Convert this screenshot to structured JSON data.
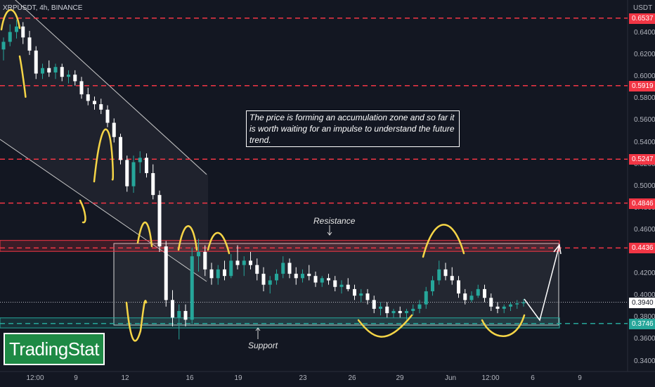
{
  "header": {
    "symbol": "XRPUSDT, 4h, BINANCE",
    "unit": "USDT"
  },
  "annotation": {
    "note": "The price is forming an accumulation zone and so far it is worth waiting for an impulse to understand the future trend.",
    "resistance_label": "Resistance",
    "support_label": "Support"
  },
  "logo": {
    "text": "TradingStat",
    "color": "#1e8a45"
  },
  "colors": {
    "background": "#131722",
    "up": "#26a69a",
    "down": "#ffffff",
    "level_line": "#f23645",
    "support_line": "#26a69a",
    "wave": "#f5d547"
  },
  "chart_data": {
    "type": "candlestick",
    "title": "XRPUSDT, 4h, BINANCE",
    "y_axis": {
      "unit": "USDT",
      "ticks": [
        "0.6400",
        "0.6200",
        "0.6000",
        "0.5800",
        "0.5600",
        "0.5400",
        "0.5200",
        "0.5000",
        "0.4800",
        "0.4600",
        "0.4400",
        "0.4200",
        "0.4000",
        "0.3800",
        "0.3600",
        "0.3400"
      ],
      "range": [
        0.33,
        0.662
      ]
    },
    "x_axis": {
      "ticks": [
        "12:00",
        "9",
        "12",
        "16",
        "19",
        "23",
        "26",
        "29",
        "Jun",
        "12:00",
        "6",
        "9"
      ]
    },
    "levels": [
      {
        "label": "0.6537",
        "value": 0.6537,
        "style": "dashed",
        "color": "#f23645"
      },
      {
        "label": "0.5919",
        "value": 0.5919,
        "style": "dashed",
        "color": "#f23645"
      },
      {
        "label": "0.5247",
        "value": 0.5247,
        "style": "dashed",
        "color": "#f23645"
      },
      {
        "label": "0.4846",
        "value": 0.4846,
        "style": "dashed",
        "color": "#f23645"
      },
      {
        "label": "0.4436",
        "value": 0.4436,
        "style": "dashed",
        "color": "#f23645"
      },
      {
        "label": "0.3746",
        "value": 0.3746,
        "style": "dashed",
        "color": "#26a69a"
      }
    ],
    "last_price": {
      "label": "0.3940",
      "value": 0.394
    },
    "zones": [
      {
        "name": "Resistance",
        "from": 0.4405,
        "to": 0.4505
      },
      {
        "name": "Support",
        "from": 0.3705,
        "to": 0.3797
      }
    ],
    "candles": [
      {
        "o": 0.625,
        "h": 0.636,
        "l": 0.615,
        "c": 0.632
      },
      {
        "o": 0.632,
        "h": 0.648,
        "l": 0.628,
        "c": 0.641
      },
      {
        "o": 0.641,
        "h": 0.652,
        "l": 0.635,
        "c": 0.646
      },
      {
        "o": 0.646,
        "h": 0.65,
        "l": 0.63,
        "c": 0.636
      },
      {
        "o": 0.636,
        "h": 0.642,
        "l": 0.62,
        "c": 0.624
      },
      {
        "o": 0.624,
        "h": 0.628,
        "l": 0.598,
        "c": 0.603
      },
      {
        "o": 0.603,
        "h": 0.612,
        "l": 0.598,
        "c": 0.608
      },
      {
        "o": 0.608,
        "h": 0.615,
        "l": 0.6,
        "c": 0.604
      },
      {
        "o": 0.604,
        "h": 0.612,
        "l": 0.598,
        "c": 0.609
      },
      {
        "o": 0.609,
        "h": 0.612,
        "l": 0.596,
        "c": 0.6
      },
      {
        "o": 0.6,
        "h": 0.606,
        "l": 0.594,
        "c": 0.602
      },
      {
        "o": 0.602,
        "h": 0.606,
        "l": 0.592,
        "c": 0.596
      },
      {
        "o": 0.596,
        "h": 0.6,
        "l": 0.58,
        "c": 0.584
      },
      {
        "o": 0.584,
        "h": 0.59,
        "l": 0.574,
        "c": 0.578
      },
      {
        "o": 0.578,
        "h": 0.582,
        "l": 0.57,
        "c": 0.575
      },
      {
        "o": 0.575,
        "h": 0.58,
        "l": 0.566,
        "c": 0.57
      },
      {
        "o": 0.57,
        "h": 0.574,
        "l": 0.554,
        "c": 0.558
      },
      {
        "o": 0.558,
        "h": 0.562,
        "l": 0.54,
        "c": 0.545
      },
      {
        "o": 0.545,
        "h": 0.548,
        "l": 0.52,
        "c": 0.524
      },
      {
        "o": 0.524,
        "h": 0.528,
        "l": 0.495,
        "c": 0.5
      },
      {
        "o": 0.5,
        "h": 0.528,
        "l": 0.494,
        "c": 0.522
      },
      {
        "o": 0.522,
        "h": 0.532,
        "l": 0.512,
        "c": 0.526
      },
      {
        "o": 0.526,
        "h": 0.53,
        "l": 0.508,
        "c": 0.512
      },
      {
        "o": 0.512,
        "h": 0.52,
        "l": 0.488,
        "c": 0.492
      },
      {
        "o": 0.492,
        "h": 0.496,
        "l": 0.44,
        "c": 0.445
      },
      {
        "o": 0.445,
        "h": 0.45,
        "l": 0.39,
        "c": 0.396
      },
      {
        "o": 0.396,
        "h": 0.405,
        "l": 0.372,
        "c": 0.38
      },
      {
        "o": 0.38,
        "h": 0.392,
        "l": 0.36,
        "c": 0.386
      },
      {
        "o": 0.386,
        "h": 0.392,
        "l": 0.372,
        "c": 0.378
      },
      {
        "o": 0.378,
        "h": 0.444,
        "l": 0.374,
        "c": 0.436
      },
      {
        "o": 0.436,
        "h": 0.452,
        "l": 0.422,
        "c": 0.44
      },
      {
        "o": 0.44,
        "h": 0.446,
        "l": 0.418,
        "c": 0.424
      },
      {
        "o": 0.424,
        "h": 0.43,
        "l": 0.41,
        "c": 0.416
      },
      {
        "o": 0.416,
        "h": 0.428,
        "l": 0.41,
        "c": 0.424
      },
      {
        "o": 0.424,
        "h": 0.432,
        "l": 0.414,
        "c": 0.418
      },
      {
        "o": 0.418,
        "h": 0.438,
        "l": 0.416,
        "c": 0.432
      },
      {
        "o": 0.432,
        "h": 0.446,
        "l": 0.424,
        "c": 0.428
      },
      {
        "o": 0.428,
        "h": 0.436,
        "l": 0.418,
        "c": 0.432
      },
      {
        "o": 0.432,
        "h": 0.44,
        "l": 0.424,
        "c": 0.428
      },
      {
        "o": 0.428,
        "h": 0.434,
        "l": 0.414,
        "c": 0.42
      },
      {
        "o": 0.42,
        "h": 0.426,
        "l": 0.404,
        "c": 0.41
      },
      {
        "o": 0.41,
        "h": 0.418,
        "l": 0.402,
        "c": 0.414
      },
      {
        "o": 0.414,
        "h": 0.424,
        "l": 0.41,
        "c": 0.42
      },
      {
        "o": 0.42,
        "h": 0.436,
        "l": 0.416,
        "c": 0.43
      },
      {
        "o": 0.43,
        "h": 0.434,
        "l": 0.416,
        "c": 0.42
      },
      {
        "o": 0.42,
        "h": 0.426,
        "l": 0.41,
        "c": 0.416
      },
      {
        "o": 0.416,
        "h": 0.424,
        "l": 0.412,
        "c": 0.42
      },
      {
        "o": 0.42,
        "h": 0.428,
        "l": 0.414,
        "c": 0.418
      },
      {
        "o": 0.418,
        "h": 0.422,
        "l": 0.408,
        "c": 0.412
      },
      {
        "o": 0.412,
        "h": 0.418,
        "l": 0.408,
        "c": 0.416
      },
      {
        "o": 0.416,
        "h": 0.42,
        "l": 0.41,
        "c": 0.414
      },
      {
        "o": 0.414,
        "h": 0.418,
        "l": 0.404,
        "c": 0.408
      },
      {
        "o": 0.408,
        "h": 0.414,
        "l": 0.402,
        "c": 0.41
      },
      {
        "o": 0.41,
        "h": 0.416,
        "l": 0.404,
        "c": 0.406
      },
      {
        "o": 0.406,
        "h": 0.41,
        "l": 0.396,
        "c": 0.4
      },
      {
        "o": 0.4,
        "h": 0.406,
        "l": 0.394,
        "c": 0.402
      },
      {
        "o": 0.402,
        "h": 0.406,
        "l": 0.392,
        "c": 0.396
      },
      {
        "o": 0.396,
        "h": 0.4,
        "l": 0.384,
        "c": 0.388
      },
      {
        "o": 0.388,
        "h": 0.394,
        "l": 0.382,
        "c": 0.39
      },
      {
        "o": 0.39,
        "h": 0.394,
        "l": 0.38,
        "c": 0.384
      },
      {
        "o": 0.384,
        "h": 0.388,
        "l": 0.38,
        "c": 0.386
      },
      {
        "o": 0.386,
        "h": 0.39,
        "l": 0.38,
        "c": 0.384
      },
      {
        "o": 0.384,
        "h": 0.388,
        "l": 0.378,
        "c": 0.386
      },
      {
        "o": 0.386,
        "h": 0.392,
        "l": 0.382,
        "c": 0.388
      },
      {
        "o": 0.388,
        "h": 0.396,
        "l": 0.384,
        "c": 0.392
      },
      {
        "o": 0.392,
        "h": 0.408,
        "l": 0.388,
        "c": 0.404
      },
      {
        "o": 0.404,
        "h": 0.418,
        "l": 0.4,
        "c": 0.414
      },
      {
        "o": 0.414,
        "h": 0.432,
        "l": 0.41,
        "c": 0.424
      },
      {
        "o": 0.424,
        "h": 0.43,
        "l": 0.414,
        "c": 0.418
      },
      {
        "o": 0.418,
        "h": 0.426,
        "l": 0.41,
        "c": 0.414
      },
      {
        "o": 0.414,
        "h": 0.418,
        "l": 0.398,
        "c": 0.402
      },
      {
        "o": 0.402,
        "h": 0.406,
        "l": 0.392,
        "c": 0.396
      },
      {
        "o": 0.396,
        "h": 0.404,
        "l": 0.394,
        "c": 0.4
      },
      {
        "o": 0.4,
        "h": 0.41,
        "l": 0.398,
        "c": 0.406
      },
      {
        "o": 0.406,
        "h": 0.41,
        "l": 0.394,
        "c": 0.398
      },
      {
        "o": 0.398,
        "h": 0.402,
        "l": 0.386,
        "c": 0.39
      },
      {
        "o": 0.39,
        "h": 0.394,
        "l": 0.384,
        "c": 0.388
      },
      {
        "o": 0.388,
        "h": 0.392,
        "l": 0.384,
        "c": 0.39
      },
      {
        "o": 0.39,
        "h": 0.394,
        "l": 0.386,
        "c": 0.392
      },
      {
        "o": 0.392,
        "h": 0.396,
        "l": 0.388,
        "c": 0.393
      },
      {
        "o": 0.393,
        "h": 0.397,
        "l": 0.39,
        "c": 0.394
      }
    ]
  }
}
